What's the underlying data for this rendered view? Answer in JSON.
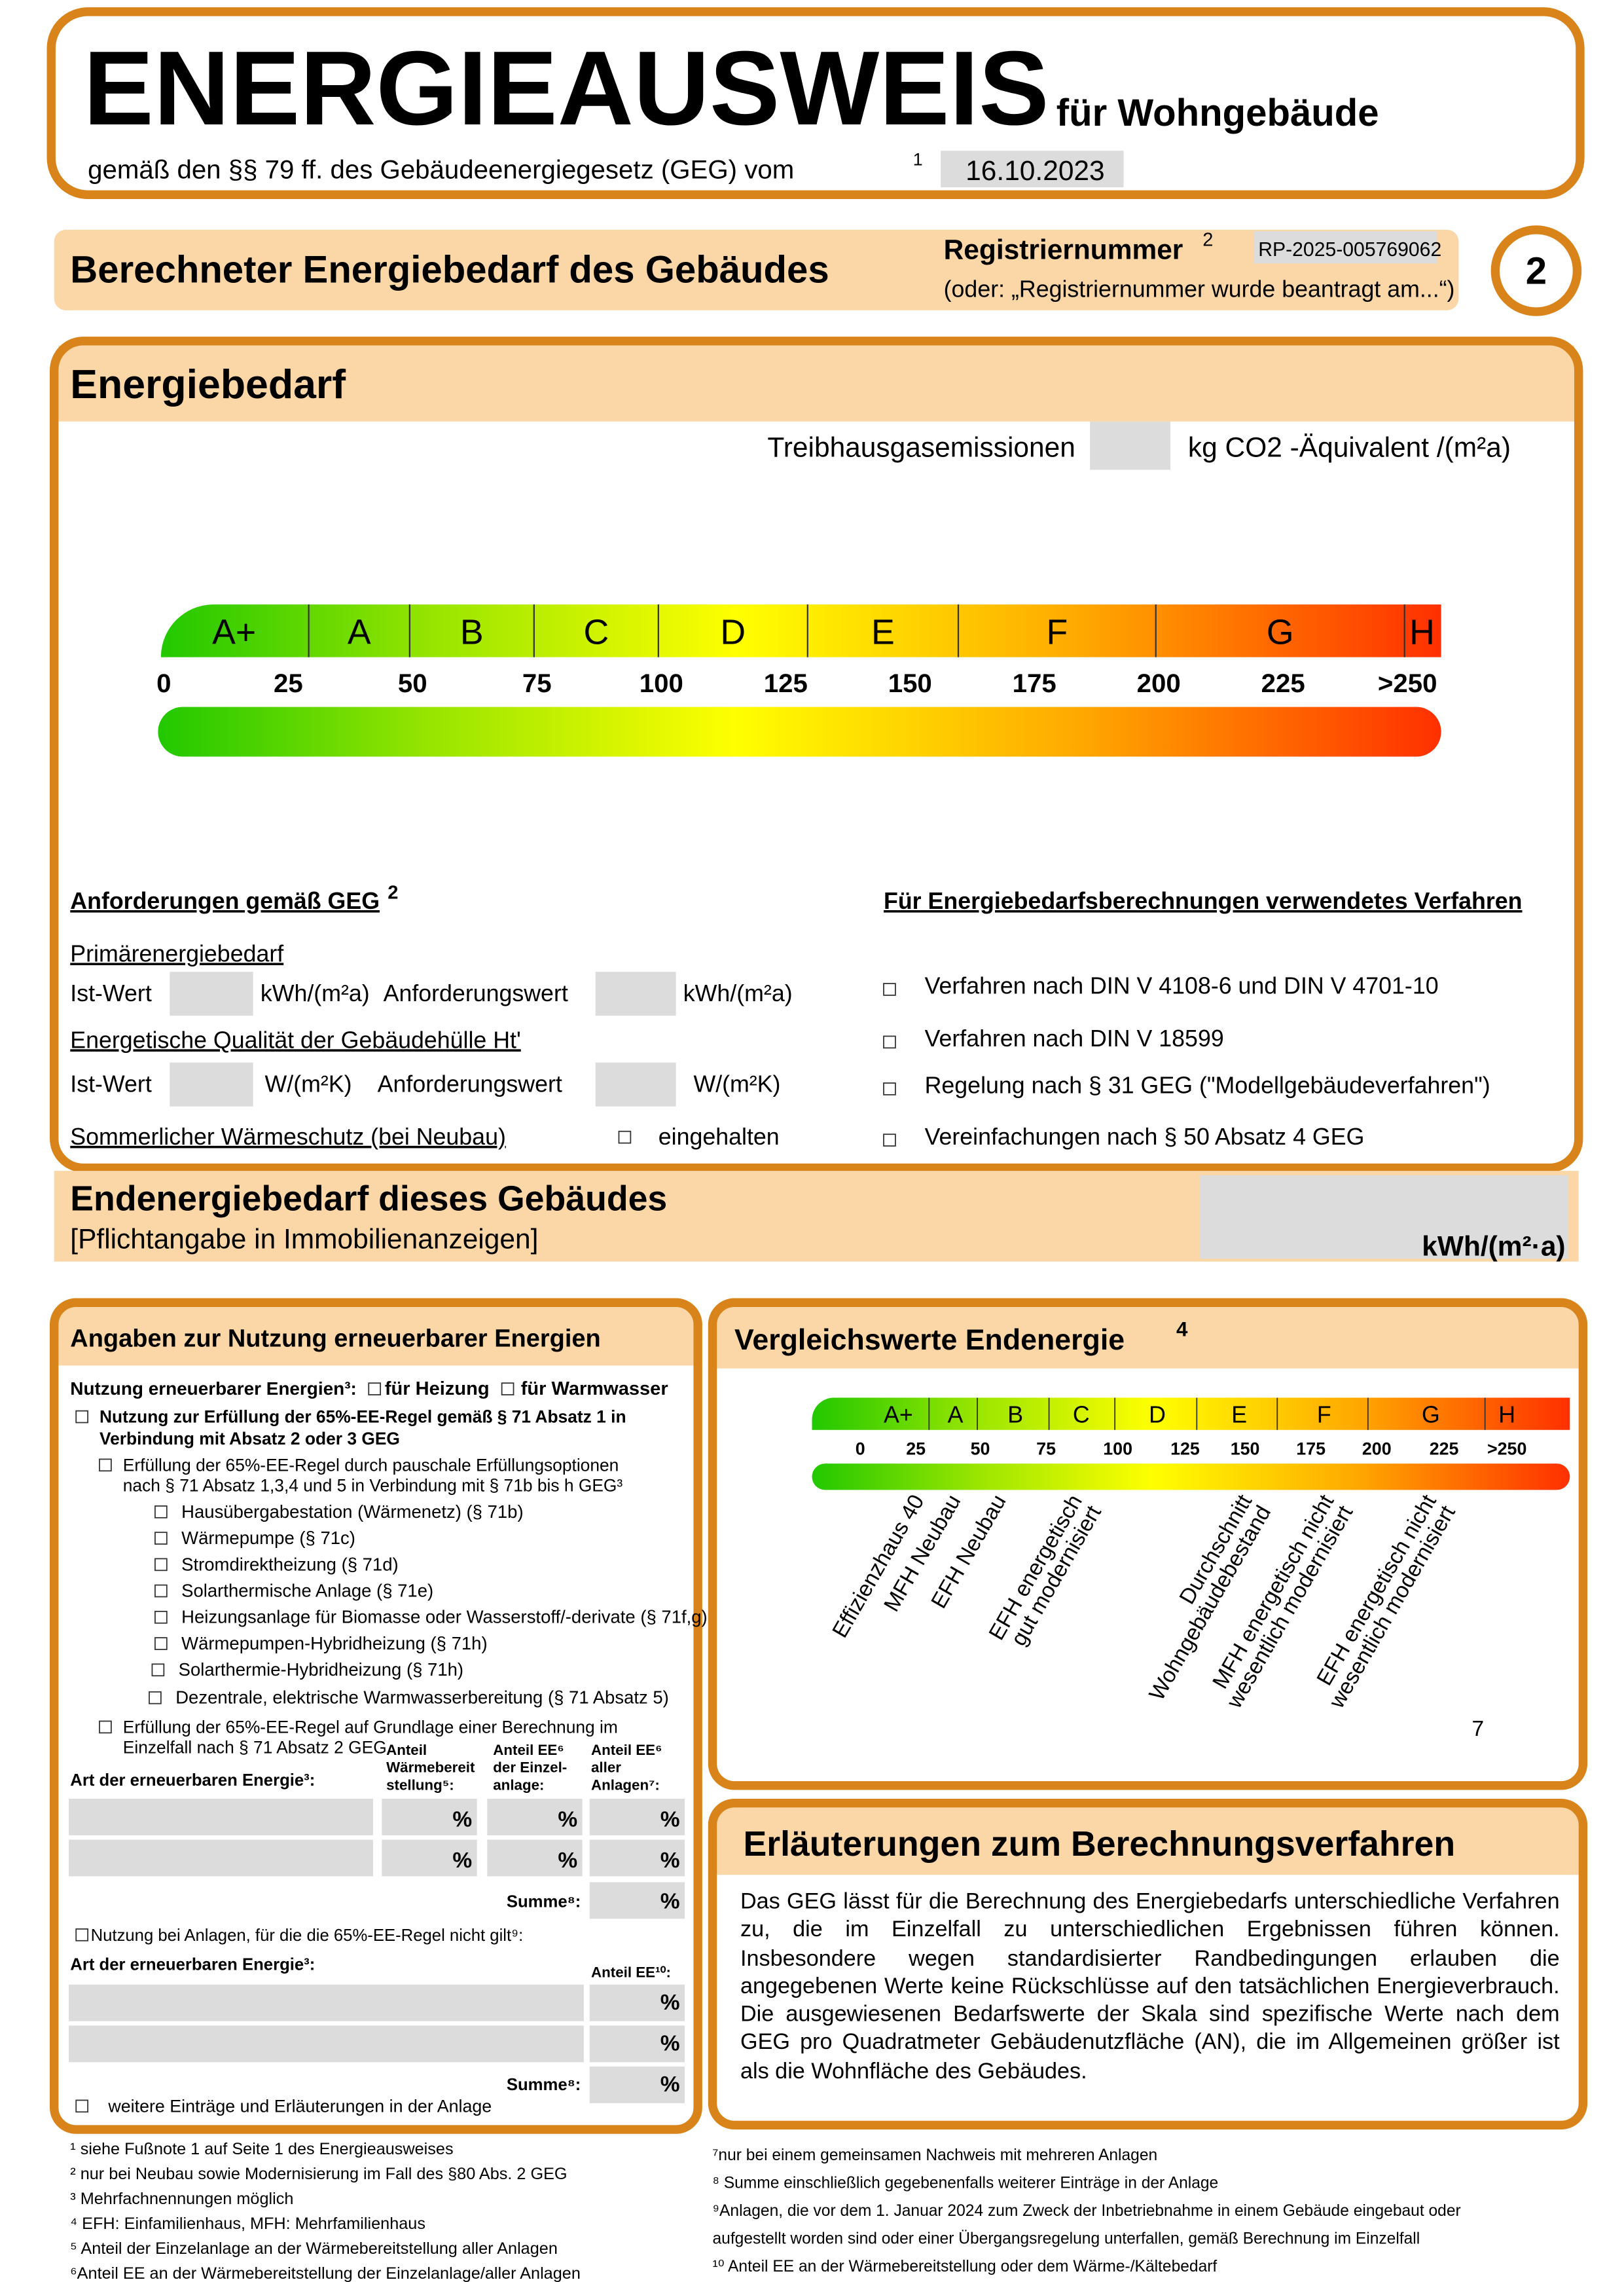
{
  "header": {
    "title": "ENERGIEAUSWEIS",
    "subtitle": "für Wohngebäude",
    "law": "gemäß den §§ 79 ff. des Gebäudeenergiegesetz (GEG) vom",
    "law_note": "1",
    "date": "16.10.2023"
  },
  "section": {
    "title": "Berechneter Energiebedarf des Gebäudes",
    "reg_label": "Registriernummer",
    "reg_note": "2",
    "reg_number": "RP-2025-005769062",
    "reg_hint": "(oder: „Registriernummer wurde beantragt am...“)",
    "page": "2"
  },
  "energiebedarf": {
    "title": "Energiebedarf",
    "emissions_label": "Treibhausgasemissionen",
    "emissions_unit": "kg CO2 -Äquivalent /(m²a)",
    "classes": [
      "A+",
      "A",
      "B",
      "C",
      "D",
      "E",
      "F",
      "G",
      "H"
    ],
    "scale": [
      0,
      25,
      50,
      75,
      100,
      125,
      150,
      175,
      200,
      225,
      ">250"
    ]
  },
  "anforderungen": {
    "title": "Anforderungen gemäß GEG",
    "title_note": "2",
    "primary": "Primärenergiebedarf",
    "ist": "Ist-Wert",
    "unit_kwh": "kWh/(m²a)",
    "anf": "Anforderungswert",
    "unit_kwh2": "kWh/(m²a)",
    "quality": "Energetische Qualität der Gebäudehülle Ht'",
    "ist2": "Ist-Wert",
    "unit_w": "W/(m²K)",
    "anf2": "Anforderungswert",
    "unit_w2": "W/(m²K)",
    "summer": "Sommerlicher Wärmeschutz (bei Neubau)",
    "kept": "eingehalten"
  },
  "verfahren": {
    "title": "Für Energiebedarfsberechnungen verwendetes Verfahren",
    "options": [
      "Verfahren nach DIN V 4108-6 und DIN V 4701-10",
      "Verfahren nach DIN V 18599",
      "Regelung nach § 31 GEG (\"Modellgebäudeverfahren\")",
      "Vereinfachungen nach § 50 Absatz 4 GEG"
    ]
  },
  "endenergie": {
    "title": "Endenergiebedarf dieses Gebäudes",
    "subtitle": "[Pflichtangabe in Immobilienanzeigen]",
    "unit": "kWh/(m²·a)"
  },
  "erneuerbar": {
    "title": "Angaben zur Nutzung erneuerbarer Energien",
    "use": "Nutzung erneuerbarer Energien³:",
    "heating": "für Heizung",
    "water": "für Warmwasser",
    "rule_line1": "Nutzung zur Erfüllung der 65%-EE-Regel gemäß § 71 Absatz 1 in",
    "rule_line2": "Verbindung mit Absatz 2 oder 3 GEG",
    "flat_line1": "Erfüllung der 65%-EE-Regel durch pauschale Erfüllungsoptionen",
    "flat_line2": "nach § 71 Absatz 1,3,4 und 5 in Verbindung mit § 71b bis h GEG³",
    "options": [
      "Hausübergabestation (Wärmenetz) (§ 71b)",
      "Wärmepumpe (§ 71c)",
      "Stromdirektheizung (§ 71d)",
      "Solarthermische Anlage (§ 71e)",
      "Heizungsanlage für Biomasse oder Wasserstoff/-derivate (§ 71f,g)",
      "Wärmepumpen-Hybridheizung (§ 71h)",
      "Solarthermie-Hybridheizung (§ 71h)",
      "Dezentrale, elektrische Warmwasserbereitung (§ 71 Absatz 5)"
    ],
    "calc_line1": "Erfüllung der 65%-EE-Regel auf Grundlage einer Berechnung im",
    "calc_line2": "Einzelfall nach § 71 Absatz 2 GEG",
    "col1": [
      "Anteil",
      "Wärmebereit",
      "stellung⁵:"
    ],
    "col2": [
      "Anteil EE⁶",
      "der Einzel-",
      "anlage:"
    ],
    "col3": [
      "Anteil EE⁶",
      "aller",
      "Anlagen⁷:"
    ],
    "art": "Art der erneuerbaren Energie³:",
    "rows": [
      [
        "%",
        "%",
        "%"
      ],
      [
        "%",
        "%",
        "%"
      ]
    ],
    "sum": "Summe⁸:",
    "sum_unit": "%",
    "other": "Nutzung bei Anlagen, für die die 65%-EE-Regel nicht gilt⁹:",
    "art2": "Art der erneuerbaren Energie³:",
    "col4": "Anteil EE¹⁰:",
    "rows2": [
      "%",
      "%"
    ],
    "sum2": "Summe⁸:",
    "sum2_unit": "%",
    "more": "weitere Einträge und Erläuterungen in der Anlage"
  },
  "vergleich": {
    "title": "Vergleichswerte Endenergie",
    "note": "4",
    "classes": [
      "A+",
      "A",
      "B",
      "C",
      "D",
      "E",
      "F",
      "G",
      "H"
    ],
    "scale": [
      0,
      25,
      50,
      75,
      100,
      125,
      150,
      175,
      200,
      225,
      ">250"
    ],
    "labels": [
      [
        "Effizienzhaus 40"
      ],
      [
        "MFH Neubau"
      ],
      [
        "EFH Neubau"
      ],
      [
        "EFH energetisch",
        "gut modernisiert"
      ],
      [
        "Durchschnitt",
        "Wohngebäudebestand"
      ],
      [
        "MFH energetisch nicht",
        "wesentlich modernisiert"
      ],
      [
        "EFH energetisch nicht",
        "wesentlich modernisiert"
      ]
    ],
    "footnote_ref": "7"
  },
  "erlaeuterungen": {
    "title": "Erläuterungen zum Berechnungsverfahren",
    "text": "Das GEG lässt für die Berechnung des Energiebedarfs unterschiedliche Verfahren zu, die im Einzelfall zu unterschiedlichen Ergebnissen führen können. Insbesondere wegen standardisierter Randbedingungen erlauben die angegebenen Werte keine Rückschlüsse auf den tatsächlichen Energieverbrauch. Die ausgewiesenen Bedarfswerte der Skala sind spezifische Werte nach dem GEG pro Quadratmeter Gebäudenutzfläche (AN), die im Allgemeinen größer ist als die Wohnfläche des Gebäudes."
  },
  "footnotes_left": [
    "¹ siehe Fußnote 1 auf Seite 1 des Energieausweises",
    "² nur bei Neubau sowie Modernisierung im Fall des §80 Abs. 2 GEG",
    "³ Mehrfachnennungen möglich",
    "⁴ EFH: Einfamilienhaus, MFH: Mehrfamilienhaus",
    "⁵ Anteil der Einzelanlage an der Wärmebereitstellung aller Anlagen",
    "⁶Anteil EE an der Wärmebereitstellung der Einzelanlage/aller Anlagen"
  ],
  "footnotes_right": [
    "⁷nur bei einem gemeinsamen Nachweis mit mehreren Anlagen",
    "⁸ Summe einschließlich gegebenenfalls weiterer Einträge in der Anlage",
    "⁹Anlagen, die vor dem 1. Januar 2024 zum Zweck der Inbetriebnahme in einem Gebäude eingebaut oder",
    "aufgestellt worden sind oder einer Übergangsregelung unterfallen, gemäß Berechnung im Einzelfall",
    "¹⁰ Anteil EE an der Wärmebereitstellung oder dem Wärme-/Kältebedarf"
  ]
}
